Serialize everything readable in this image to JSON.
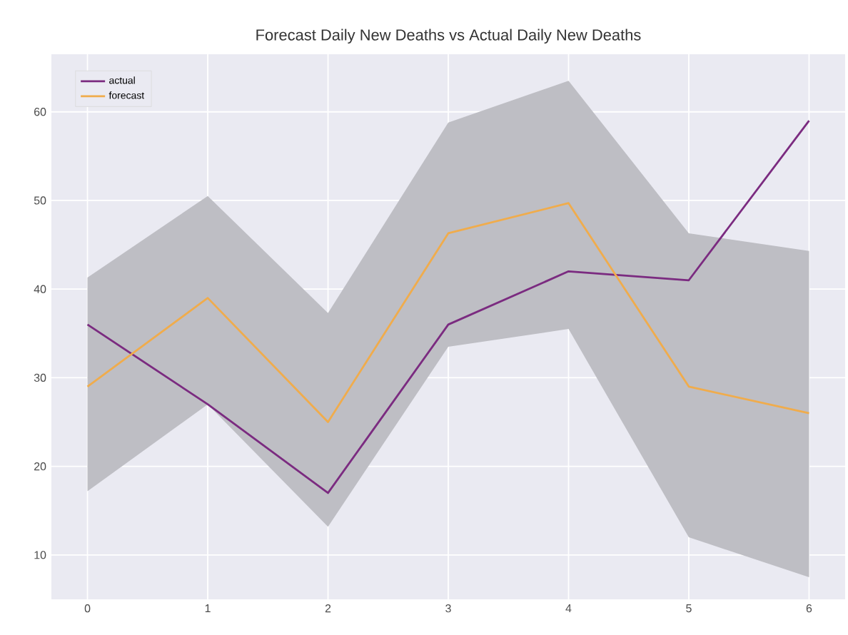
{
  "chart_data": {
    "type": "line",
    "title": "Forecast Daily New Deaths vs Actual Daily New Deaths",
    "x": [
      0,
      1,
      2,
      3,
      4,
      5,
      6
    ],
    "series": [
      {
        "name": "actual",
        "color": "#7b2b80",
        "values": [
          36,
          27,
          17,
          36,
          42,
          41,
          59
        ]
      },
      {
        "name": "forecast",
        "color": "#f0ac4c",
        "values": [
          29,
          39,
          25,
          46.3,
          49.7,
          29,
          26
        ],
        "lower": [
          17.2,
          27,
          13.2,
          33.5,
          35.5,
          12,
          7.5
        ],
        "upper": [
          41.3,
          50.5,
          37.3,
          58.8,
          63.5,
          46.3,
          44.3
        ]
      }
    ],
    "xlim": [
      -0.3,
      6.3
    ],
    "ylim": [
      5,
      66.5
    ],
    "xticks": [
      0,
      1,
      2,
      3,
      4,
      5,
      6
    ],
    "yticks": [
      10,
      20,
      30,
      40,
      50,
      60
    ],
    "grid": true,
    "legend": "top left",
    "marker": "none",
    "line_style": "solid"
  }
}
